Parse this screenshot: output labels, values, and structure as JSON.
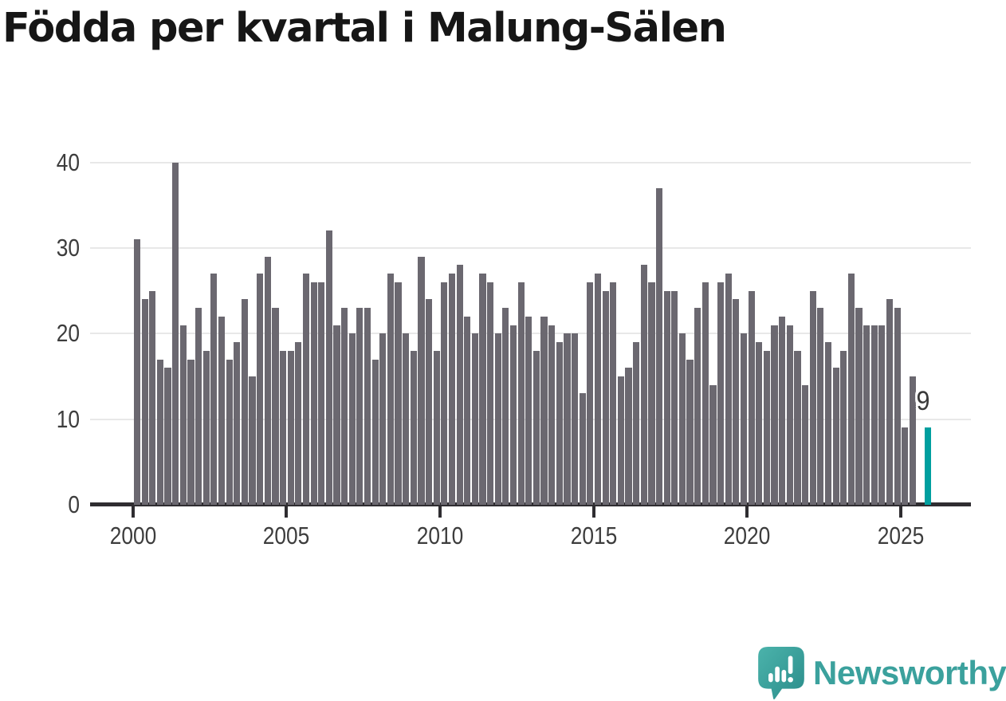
{
  "title": "Födda per kvartal i Malung-Sälen",
  "chart_data": {
    "type": "bar",
    "title": "Födda per kvartal i Malung-Sälen",
    "x_start": "2000-Q1",
    "x_end": "2025-Q4",
    "x_unit": "quarter",
    "values": [
      31,
      24,
      25,
      17,
      16,
      40,
      21,
      17,
      23,
      18,
      27,
      22,
      17,
      19,
      24,
      15,
      27,
      29,
      23,
      18,
      18,
      19,
      27,
      26,
      26,
      32,
      21,
      23,
      20,
      23,
      23,
      17,
      20,
      27,
      26,
      20,
      18,
      29,
      24,
      18,
      26,
      27,
      28,
      22,
      20,
      27,
      26,
      20,
      23,
      21,
      26,
      22,
      18,
      22,
      21,
      19,
      20,
      20,
      13,
      26,
      27,
      25,
      26,
      15,
      16,
      19,
      28,
      26,
      37,
      25,
      25,
      20,
      17,
      23,
      26,
      14,
      26,
      27,
      24,
      20,
      25,
      19,
      18,
      21,
      22,
      21,
      18,
      14,
      25,
      23,
      19,
      16,
      18,
      27,
      23,
      21,
      21,
      21,
      24,
      23,
      9,
      15,
      null,
      9
    ],
    "highlight_index": 103,
    "highlight_value_label": "9",
    "x_tick_labels": [
      "2000",
      "2005",
      "2010",
      "2015",
      "2020",
      "2025"
    ],
    "y_tick_values": [
      0,
      10,
      20,
      30,
      40
    ],
    "ylim": [
      0,
      40
    ],
    "grid": true,
    "legend": false,
    "bar_color": "#6b6870",
    "highlight_color": "#009f9f",
    "grid_color": "#e8e8e8",
    "axis_color": "#2f2d31"
  },
  "logo": {
    "text": "Newsworthy",
    "icon": "newsworthy-bar-chart-speech-bubble-icon",
    "text_color": "#3ba19d"
  }
}
